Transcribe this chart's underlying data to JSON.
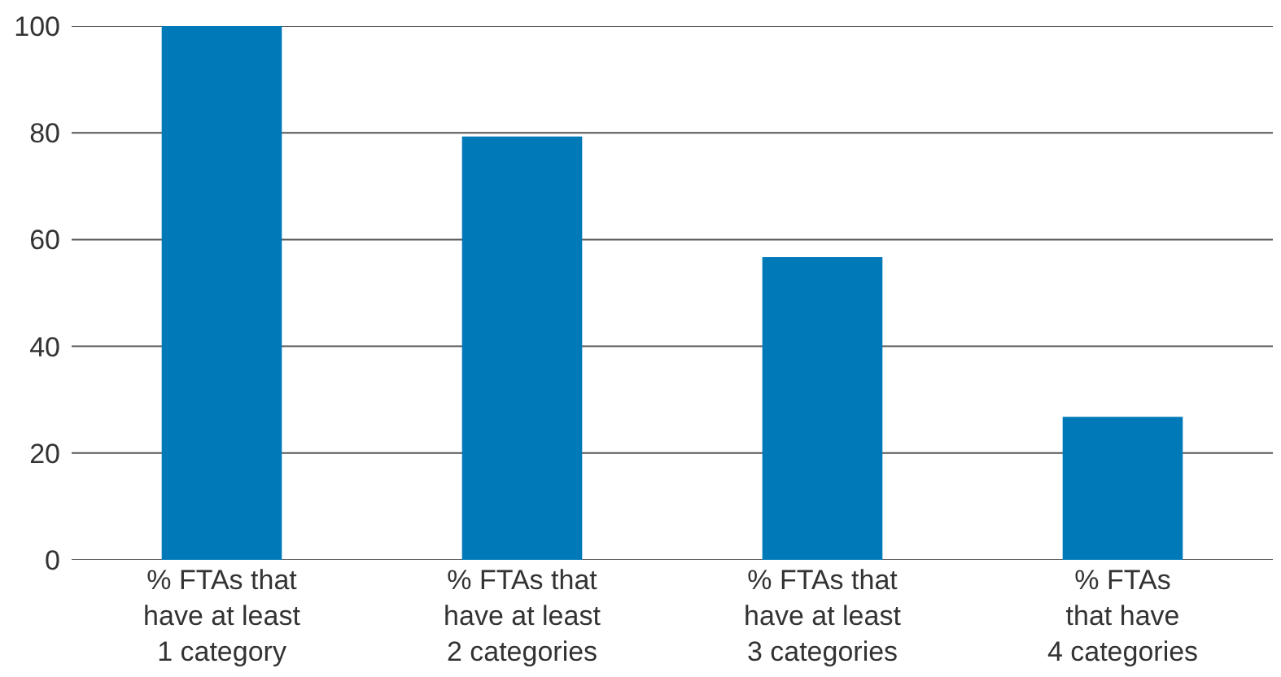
{
  "chart_data": {
    "type": "bar",
    "categories": [
      "% FTAs that\nhave at least\n1 category",
      "% FTAs that\nhave at least\n2 categories",
      "% FTAs that\nhave at least\n3 categories",
      "% FTAs\nthat have\n4 categories"
    ],
    "values": [
      100,
      79.3,
      56.7,
      26.8
    ],
    "color": "#0079b8",
    "ylim": [
      0,
      100
    ],
    "yticks": [
      0,
      20,
      40,
      60,
      80,
      100
    ],
    "grid": "y"
  }
}
